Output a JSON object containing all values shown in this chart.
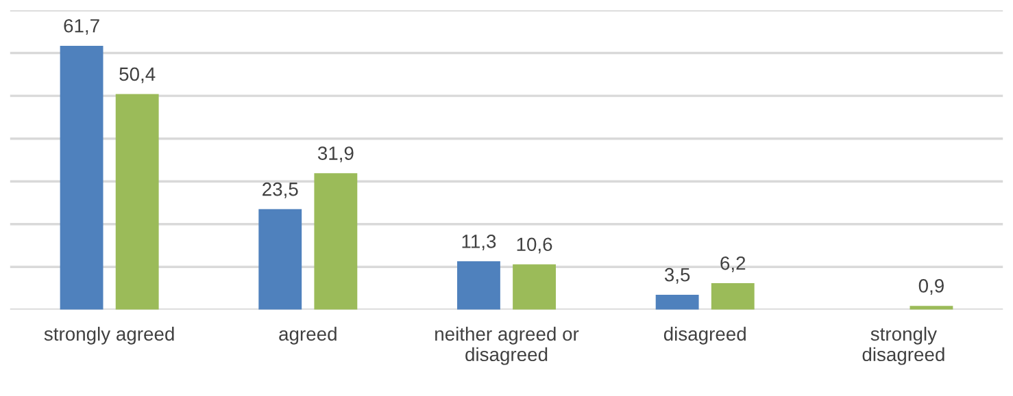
{
  "chart_data": {
    "type": "bar",
    "categories": [
      "strongly agreed",
      "agreed",
      "neither agreed or\ndisagreed",
      "disagreed",
      "strongly\ndisagreed"
    ],
    "series": [
      {
        "color": "#4f81bd",
        "values": [
          61.7,
          23.5,
          11.3,
          3.5,
          null
        ],
        "value_labels": [
          "61,7",
          "23,5",
          "11,3",
          "3,5",
          null
        ]
      },
      {
        "color": "#9bbb59",
        "values": [
          50.4,
          31.9,
          10.6,
          6.2,
          0.9
        ],
        "value_labels": [
          "50,4",
          "31,9",
          "10,6",
          "6,2",
          "0,9"
        ]
      }
    ],
    "ylim": [
      0,
      70
    ],
    "yticks": [
      {
        "value": 0,
        "label": null
      },
      {
        "value": 10,
        "label": null
      },
      {
        "value": 20,
        "label": null
      },
      {
        "value": 30,
        "label": null
      },
      {
        "value": 40,
        "label": null
      },
      {
        "value": 50,
        "label": null
      },
      {
        "value": 60,
        "label": null
      },
      {
        "value": 70,
        "label": null
      }
    ],
    "grid": "y",
    "tick_labels": "x",
    "legend": false
  }
}
